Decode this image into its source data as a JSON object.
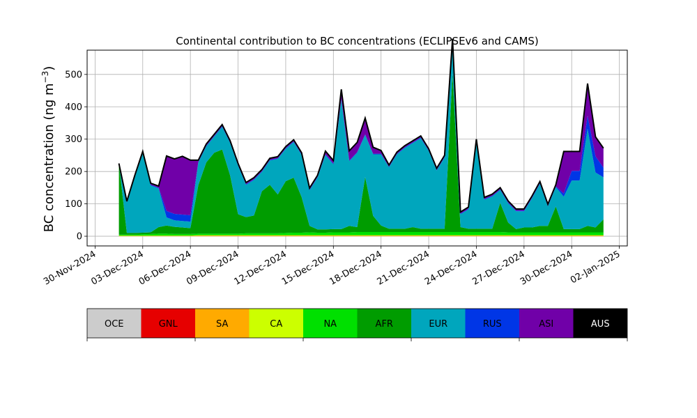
{
  "chart_data": {
    "type": "area",
    "title": "Continental contribution to BC concentrations (ECLIPSEv6 and CAMS)",
    "ylabel": "BC concentration (ng m",
    "ylabel_sup": "−3",
    "ylabel_close": ")",
    "xlabel": "",
    "xlim": [
      "2024-11-29T12:00",
      "2025-01-02T12:00"
    ],
    "ylim": [
      -30,
      575
    ],
    "grid": true,
    "yticks": [
      0,
      100,
      200,
      300,
      400,
      500
    ],
    "xticks": [
      {
        "date": "2024-11-30",
        "label": "30-Nov-2024"
      },
      {
        "date": "2024-12-03",
        "label": "03-Dec-2024"
      },
      {
        "date": "2024-12-06",
        "label": "06-Dec-2024"
      },
      {
        "date": "2024-12-09",
        "label": "09-Dec-2024"
      },
      {
        "date": "2024-12-12",
        "label": "12-Dec-2024"
      },
      {
        "date": "2024-12-15",
        "label": "15-Dec-2024"
      },
      {
        "date": "2024-12-18",
        "label": "18-Dec-2024"
      },
      {
        "date": "2024-12-21",
        "label": "21-Dec-2024"
      },
      {
        "date": "2024-12-24",
        "label": "24-Dec-2024"
      },
      {
        "date": "2024-12-27",
        "label": "27-Dec-2024"
      },
      {
        "date": "2024-12-30",
        "label": "30-Dec-2024"
      },
      {
        "date": "2025-01-02",
        "label": "02-Jan-2025"
      }
    ],
    "x": [
      "2024-12-01T12:00",
      "2024-12-02T00:00",
      "2024-12-02T12:00",
      "2024-12-03T00:00",
      "2024-12-03T12:00",
      "2024-12-04T00:00",
      "2024-12-04T12:00",
      "2024-12-05T00:00",
      "2024-12-05T12:00",
      "2024-12-06T00:00",
      "2024-12-06T12:00",
      "2024-12-07T00:00",
      "2024-12-07T12:00",
      "2024-12-08T00:00",
      "2024-12-08T12:00",
      "2024-12-09T00:00",
      "2024-12-09T12:00",
      "2024-12-10T00:00",
      "2024-12-10T12:00",
      "2024-12-11T00:00",
      "2024-12-11T12:00",
      "2024-12-12T00:00",
      "2024-12-12T12:00",
      "2024-12-13T00:00",
      "2024-12-13T12:00",
      "2024-12-14T00:00",
      "2024-12-14T12:00",
      "2024-12-15T00:00",
      "2024-12-15T12:00",
      "2024-12-16T00:00",
      "2024-12-16T12:00",
      "2024-12-17T00:00",
      "2024-12-17T12:00",
      "2024-12-18T00:00",
      "2024-12-18T12:00",
      "2024-12-19T00:00",
      "2024-12-19T12:00",
      "2024-12-20T00:00",
      "2024-12-20T12:00",
      "2024-12-21T00:00",
      "2024-12-21T12:00",
      "2024-12-22T00:00",
      "2024-12-22T12:00",
      "2024-12-23T00:00",
      "2024-12-23T12:00",
      "2024-12-24T00:00",
      "2024-12-24T12:00",
      "2024-12-25T00:00",
      "2024-12-25T12:00",
      "2024-12-26T00:00",
      "2024-12-26T12:00",
      "2024-12-27T00:00",
      "2024-12-27T12:00",
      "2024-12-28T00:00",
      "2024-12-28T12:00",
      "2024-12-29T00:00",
      "2024-12-29T12:00",
      "2024-12-30T00:00",
      "2024-12-30T12:00",
      "2024-12-31T00:00",
      "2024-12-31T12:00",
      "2025-01-01T00:00"
    ],
    "series": [
      {
        "name": "OCE",
        "color": "#cccccc",
        "values": [
          0,
          0,
          0,
          0,
          0,
          0,
          0,
          0,
          0,
          0,
          0,
          0,
          0,
          0,
          0,
          0,
          0,
          0,
          0,
          0,
          0,
          0,
          0,
          0,
          0,
          0,
          0,
          0,
          0,
          0,
          0,
          0,
          0,
          0,
          0,
          0,
          0,
          0,
          0,
          0,
          0,
          0,
          0,
          0,
          0,
          0,
          0,
          0,
          0,
          0,
          0,
          0,
          0,
          0,
          0,
          0,
          0,
          0,
          0,
          0,
          0,
          0
        ]
      },
      {
        "name": "GNL",
        "color": "#e60000",
        "values": [
          0,
          0,
          0,
          0,
          0,
          0,
          0,
          0,
          0,
          0,
          0,
          0,
          0,
          0,
          0,
          0,
          0,
          0,
          0,
          0,
          0,
          0,
          0,
          0,
          0,
          0,
          0,
          0,
          0,
          0,
          0,
          0,
          0,
          0,
          0,
          0,
          0,
          0,
          0,
          0,
          0,
          0,
          0,
          0,
          0,
          0,
          0,
          0,
          0,
          0,
          0,
          0,
          0,
          0,
          0,
          0,
          0,
          0,
          0,
          0,
          0,
          0
        ]
      },
      {
        "name": "SA",
        "color": "#ffaa00",
        "values": [
          1,
          1,
          1,
          1,
          1,
          1,
          1,
          1,
          1,
          1,
          2,
          2,
          2,
          2,
          2,
          2,
          2,
          2,
          2,
          2,
          2,
          2,
          2,
          2,
          2,
          2,
          2,
          2,
          2,
          2,
          2,
          2,
          2,
          2,
          2,
          2,
          2,
          2,
          2,
          2,
          2,
          2,
          2,
          2,
          2,
          2,
          2,
          2,
          2,
          2,
          2,
          2,
          2,
          2,
          2,
          2,
          2,
          2,
          2,
          2,
          2,
          2
        ]
      },
      {
        "name": "CA",
        "color": "#ccff00",
        "values": [
          1,
          1,
          1,
          1,
          1,
          1,
          1,
          1,
          1,
          1,
          1,
          1,
          1,
          1,
          1,
          1,
          1,
          1,
          1,
          1,
          1,
          1,
          1,
          1,
          1,
          1,
          1,
          1,
          1,
          1,
          1,
          1,
          1,
          1,
          1,
          1,
          1,
          1,
          1,
          1,
          1,
          1,
          1,
          1,
          1,
          1,
          1,
          1,
          1,
          1,
          1,
          1,
          1,
          1,
          1,
          1,
          1,
          1,
          1,
          1,
          1,
          1
        ]
      },
      {
        "name": "NA",
        "color": "#00e000",
        "values": [
          3,
          3,
          3,
          4,
          5,
          6,
          6,
          5,
          5,
          5,
          5,
          5,
          5,
          5,
          5,
          5,
          6,
          6,
          6,
          6,
          6,
          7,
          8,
          8,
          9,
          8,
          8,
          9,
          9,
          9,
          10,
          10,
          10,
          10,
          10,
          10,
          10,
          10,
          10,
          10,
          10,
          10,
          10,
          10,
          10,
          10,
          10,
          10,
          10,
          9,
          9,
          9,
          9,
          9,
          9,
          9,
          9,
          9,
          9,
          9,
          9,
          9
        ]
      },
      {
        "name": "AFR",
        "color": "#009c00",
        "values": [
          220,
          5,
          5,
          5,
          5,
          20,
          25,
          22,
          20,
          18,
          150,
          220,
          250,
          260,
          180,
          60,
          50,
          55,
          130,
          150,
          120,
          160,
          170,
          110,
          20,
          10,
          10,
          10,
          10,
          20,
          15,
          170,
          50,
          20,
          10,
          10,
          10,
          15,
          10,
          10,
          10,
          10,
          490,
          15,
          10,
          10,
          10,
          10,
          90,
          30,
          10,
          15,
          15,
          20,
          20,
          80,
          10,
          10,
          10,
          20,
          15,
          40
        ]
      },
      {
        "name": "EUR",
        "color": "#00a6bd",
        "values": [
          0,
          95,
          175,
          245,
          145,
          120,
          25,
          20,
          20,
          20,
          70,
          50,
          50,
          70,
          100,
          150,
          100,
          110,
          60,
          75,
          110,
          100,
          110,
          130,
          110,
          160,
          230,
          200,
          400,
          200,
          230,
          130,
          190,
          220,
          190,
          230,
          250,
          260,
          280,
          240,
          180,
          220,
          100,
          40,
          60,
          270,
          90,
          100,
          40,
          60,
          55,
          50,
          90,
          130,
          60,
          60,
          100,
          150,
          150,
          300,
          170,
          130
        ]
      },
      {
        "name": "RUS",
        "color": "#0036e6",
        "values": [
          0,
          1,
          1,
          1,
          2,
          2,
          20,
          20,
          20,
          20,
          2,
          2,
          2,
          2,
          2,
          2,
          2,
          2,
          2,
          2,
          2,
          2,
          2,
          2,
          2,
          2,
          2,
          2,
          2,
          2,
          2,
          2,
          2,
          2,
          2,
          2,
          2,
          2,
          2,
          2,
          2,
          2,
          2,
          2,
          2,
          2,
          2,
          2,
          2,
          2,
          2,
          2,
          2,
          2,
          2,
          2,
          10,
          30,
          30,
          40,
          50,
          30
        ]
      },
      {
        "name": "ASI",
        "color": "#7000a8",
        "values": [
          0,
          2,
          2,
          5,
          5,
          5,
          170,
          170,
          180,
          170,
          5,
          5,
          5,
          5,
          5,
          5,
          5,
          5,
          5,
          5,
          5,
          5,
          5,
          5,
          5,
          5,
          10,
          10,
          30,
          30,
          30,
          50,
          20,
          10,
          5,
          5,
          5,
          5,
          5,
          5,
          5,
          5,
          5,
          5,
          5,
          5,
          5,
          5,
          5,
          5,
          5,
          5,
          5,
          5,
          5,
          5,
          130,
          60,
          60,
          100,
          60,
          60
        ]
      },
      {
        "name": "AUS",
        "color": "#000000",
        "values": [
          0,
          0,
          0,
          0,
          0,
          0,
          0,
          0,
          0,
          0,
          0,
          0,
          0,
          0,
          0,
          0,
          0,
          0,
          0,
          0,
          0,
          0,
          0,
          0,
          0,
          0,
          0,
          0,
          0,
          0,
          0,
          0,
          0,
          0,
          0,
          0,
          0,
          0,
          0,
          0,
          0,
          0,
          0,
          0,
          0,
          0,
          0,
          0,
          0,
          0,
          0,
          0,
          0,
          0,
          0,
          0,
          0,
          0,
          0,
          0,
          0,
          0
        ]
      }
    ]
  }
}
